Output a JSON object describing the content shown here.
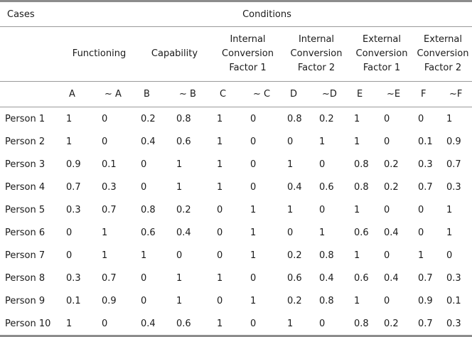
{
  "header": {
    "cases_label": "Cases",
    "conditions_label": "Conditions",
    "groups": [
      {
        "lines": [
          "Functioning"
        ]
      },
      {
        "lines": [
          "Capability"
        ]
      },
      {
        "lines": [
          "Internal",
          "Conversion",
          "Factor 1"
        ]
      },
      {
        "lines": [
          "Internal",
          "Conversion",
          "Factor 2"
        ]
      },
      {
        "lines": [
          "External",
          "Conversion",
          "Factor 1"
        ]
      },
      {
        "lines": [
          "External",
          "Conversion",
          "Factor 2"
        ]
      }
    ],
    "sub_columns": [
      "A",
      "~ A",
      "B",
      "~ B",
      "C",
      "~ C",
      "D",
      "~D",
      "E",
      "~E",
      "F",
      "~F"
    ]
  },
  "rows": [
    {
      "label": "Person 1",
      "values": [
        "1",
        "0",
        "0.2",
        "0.8",
        "1",
        "0",
        "0.8",
        "0.2",
        "1",
        "0",
        "0",
        "1"
      ]
    },
    {
      "label": "Person 2",
      "values": [
        "1",
        "0",
        "0.4",
        "0.6",
        "1",
        "0",
        "0",
        "1",
        "1",
        "0",
        "0.1",
        "0.9"
      ]
    },
    {
      "label": "Person 3",
      "values": [
        "0.9",
        "0.1",
        "0",
        "1",
        "1",
        "0",
        "1",
        "0",
        "0.8",
        "0.2",
        "0.3",
        "0.7"
      ]
    },
    {
      "label": "Person 4",
      "values": [
        "0.7",
        "0.3",
        "0",
        "1",
        "1",
        "0",
        "0.4",
        "0.6",
        "0.8",
        "0.2",
        "0.7",
        "0.3"
      ]
    },
    {
      "label": "Person 5",
      "values": [
        "0.3",
        "0.7",
        "0.8",
        "0.2",
        "0",
        "1",
        "1",
        "0",
        "1",
        "0",
        "0",
        "1"
      ]
    },
    {
      "label": "Person 6",
      "values": [
        "0",
        "1",
        "0.6",
        "0.4",
        "0",
        "1",
        "0",
        "1",
        "0.6",
        "0.4",
        "0",
        "1"
      ]
    },
    {
      "label": "Person 7",
      "values": [
        "0",
        "1",
        "1",
        "0",
        "0",
        "1",
        "0.2",
        "0.8",
        "1",
        "0",
        "1",
        "0"
      ]
    },
    {
      "label": "Person 8",
      "values": [
        "0.3",
        "0.7",
        "0",
        "1",
        "1",
        "0",
        "0.6",
        "0.4",
        "0.6",
        "0.4",
        "0.7",
        "0.3"
      ]
    },
    {
      "label": "Person 9",
      "values": [
        "0.1",
        "0.9",
        "0",
        "1",
        "0",
        "1",
        "0.2",
        "0.8",
        "1",
        "0",
        "0.9",
        "0.1"
      ]
    },
    {
      "label": "Person 10",
      "values": [
        "1",
        "0",
        "0.4",
        "0.6",
        "1",
        "0",
        "1",
        "0",
        "0.8",
        "0.2",
        "0.7",
        "0.3"
      ]
    }
  ]
}
